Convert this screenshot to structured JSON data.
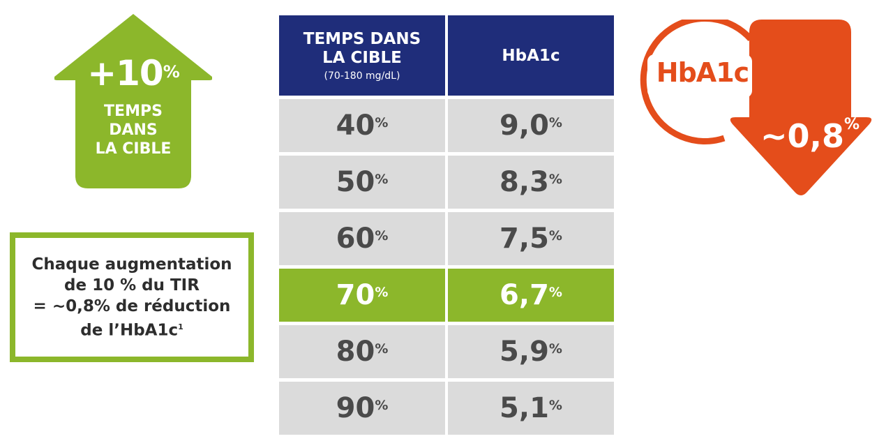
{
  "colors": {
    "green": "#8cb72b",
    "navy": "#1f2d7a",
    "orange": "#e44d1b",
    "cell_gray": "#dbdbdb"
  },
  "up_arrow": {
    "value": "+10",
    "unit": "%",
    "lines": [
      "TEMPS",
      "DANS",
      "LA CIBLE"
    ]
  },
  "note": {
    "lines": [
      "Chaque augmentation",
      "de 10 % du TIR",
      "= ~0,8% de réduction",
      "de l’HbA1c"
    ],
    "footnote": "1"
  },
  "table": {
    "header_col1_lines": [
      "TEMPS DANS",
      "LA CIBLE"
    ],
    "header_col1_sub": "(70-180 mg/dL)",
    "header_col2": "HbA1c",
    "rows": [
      {
        "tir": "40",
        "hba1c": "9,0",
        "unit": "%"
      },
      {
        "tir": "50",
        "hba1c": "8,3",
        "unit": "%"
      },
      {
        "tir": "60",
        "hba1c": "7,5",
        "unit": "%"
      },
      {
        "tir": "70",
        "hba1c": "6,7",
        "unit": "%",
        "highlight": true
      },
      {
        "tir": "80",
        "hba1c": "5,9",
        "unit": "%"
      },
      {
        "tir": "90",
        "hba1c": "5,1",
        "unit": "%"
      }
    ]
  },
  "down_arrow": {
    "label": "HbA1c",
    "value": "~0,8",
    "unit": "%"
  }
}
